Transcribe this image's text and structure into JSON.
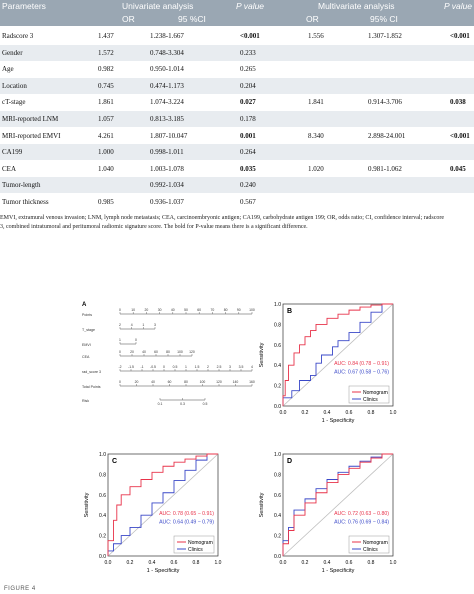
{
  "table": {
    "headers": {
      "parameters": "Parameters",
      "univariate": "Univariate analysis",
      "p_value_1": "P value",
      "multivariate": "Multivariate analysis",
      "p_value_2": "P value",
      "or_1": "OR",
      "ci_1": "95 %CI",
      "or_2": "OR",
      "ci_2": "95% CI"
    },
    "rows": [
      {
        "param": "Radscore 3",
        "or": "1.437",
        "ci": "1.238-1.667",
        "p": "<0.001",
        "p_bold": true,
        "mor": "1.556",
        "mci": "1.307-1.852",
        "mp": "<0.001",
        "mp_bold": true
      },
      {
        "param": "Gender",
        "or": "1.572",
        "ci": "0.748-3.304",
        "p": "0.233",
        "p_bold": false,
        "mor": "",
        "mci": "",
        "mp": "",
        "mp_bold": false
      },
      {
        "param": "Age",
        "or": "0.982",
        "ci": "0.950-1.014",
        "p": "0.265",
        "p_bold": false,
        "mor": "",
        "mci": "",
        "mp": "",
        "mp_bold": false
      },
      {
        "param": "Location",
        "or": "0.745",
        "ci": "0.474-1.173",
        "p": "0.204",
        "p_bold": false,
        "mor": "",
        "mci": "",
        "mp": "",
        "mp_bold": false
      },
      {
        "param": "cT-stage",
        "or": "1.861",
        "ci": "1.074-3.224",
        "p": "0.027",
        "p_bold": true,
        "mor": "1.841",
        "mci": "0.914-3.706",
        "mp": "0.038",
        "mp_bold": true
      },
      {
        "param": "MRI-reported LNM",
        "or": "1.057",
        "ci": "0.813-3.185",
        "p": "0.178",
        "p_bold": false,
        "mor": "",
        "mci": "",
        "mp": "",
        "mp_bold": false
      },
      {
        "param": "MRI-reported EMVI",
        "or": "4.261",
        "ci": "1.807-10.047",
        "p": "0.001",
        "p_bold": true,
        "mor": "8.340",
        "mci": "2.898-24.001",
        "mp": "<0.001",
        "mp_bold": true
      },
      {
        "param": "CA199",
        "or": "1.000",
        "ci": "0.998-1.011",
        "p": "0.264",
        "p_bold": false,
        "mor": "",
        "mci": "",
        "mp": "",
        "mp_bold": false
      },
      {
        "param": "CEA",
        "or": "1.040",
        "ci": "1.003-1.078",
        "p": "0.035",
        "p_bold": true,
        "mor": "1.020",
        "mci": "0.981-1.062",
        "mp": "0.045",
        "mp_bold": true
      },
      {
        "param": "Tumor-length",
        "or": "",
        "ci": "0.992-1.034",
        "p": "0.240",
        "p_bold": false,
        "mor": "",
        "mci": "",
        "mp": "",
        "mp_bold": false
      },
      {
        "param": "Tumor thickness",
        "or": "0.985",
        "ci": "0.936-1.037",
        "p": "0.567",
        "p_bold": false,
        "mor": "",
        "mci": "",
        "mp": "",
        "mp_bold": false
      }
    ],
    "footnote_1": "EMVI, extramural venous invasion; LNM, lymph node metastasis; CEA, carcinoembryonic antigen; CA199, carbohydrate antigen 199; OR, odds ratio; CI, confidence interval; radscore",
    "footnote_2": "3, combined intratumoral and peritumoral radiomic signature score. The bold for P-value means there is a significant difference."
  },
  "figure": {
    "label": "FIGURE 4",
    "nomogram": {
      "panel": "A",
      "rows": [
        "Points",
        "T_stage",
        "EMVI",
        "CEA",
        "rad_score 3",
        "Total Points",
        "Risk"
      ],
      "points_ticks": [
        "0",
        "10",
        "20",
        "30",
        "40",
        "50",
        "60",
        "70",
        "80",
        "90",
        "100"
      ],
      "tstage_ticks": [
        "2",
        "4",
        "1",
        "3"
      ],
      "emvi_ticks": [
        "1",
        "0"
      ],
      "cea_ticks": [
        "0",
        "20",
        "40",
        "60",
        "80",
        "100",
        "120"
      ],
      "rad_ticks": [
        "-2",
        "-1.5",
        "-1",
        "-0.5",
        "0",
        "0.5",
        "1",
        "1.5",
        "2",
        "2.5",
        "3",
        "3.5",
        "4"
      ],
      "total_ticks": [
        "0",
        "20",
        "40",
        "60",
        "80",
        "100",
        "120",
        "140",
        "160"
      ],
      "risk_ticks": [
        "0.1",
        "0.3",
        "0.5"
      ]
    },
    "colors": {
      "nomogram": "#e8334a",
      "clinics": "#3a48c8",
      "diag": "#bfbfbf"
    },
    "roc_panels": [
      {
        "panel": "B",
        "auc_nomogram": "AUC: 0.84 (0.78 − 0.91)",
        "auc_clinics": "AUC: 0.67 (0.58 − 0.76)"
      },
      {
        "panel": "C",
        "auc_nomogram": "AUC: 0.78 (0.65 − 0.91)",
        "auc_clinics": "AUC: 0.64 (0.49 − 0.79)"
      },
      {
        "panel": "D",
        "auc_nomogram": "AUC: 0.72 (0.63 − 0.80)",
        "auc_clinics": "AUC: 0.76 (0.69 − 0.84)"
      }
    ],
    "axis": {
      "xlabel": "1 - Specificity",
      "ylabel": "Sensitivity",
      "ticks": [
        "0.0",
        "0.2",
        "0.4",
        "0.6",
        "0.8",
        "1.0"
      ]
    },
    "legend": {
      "nomogram": "Nomogram",
      "clinics": "Clinics"
    }
  }
}
